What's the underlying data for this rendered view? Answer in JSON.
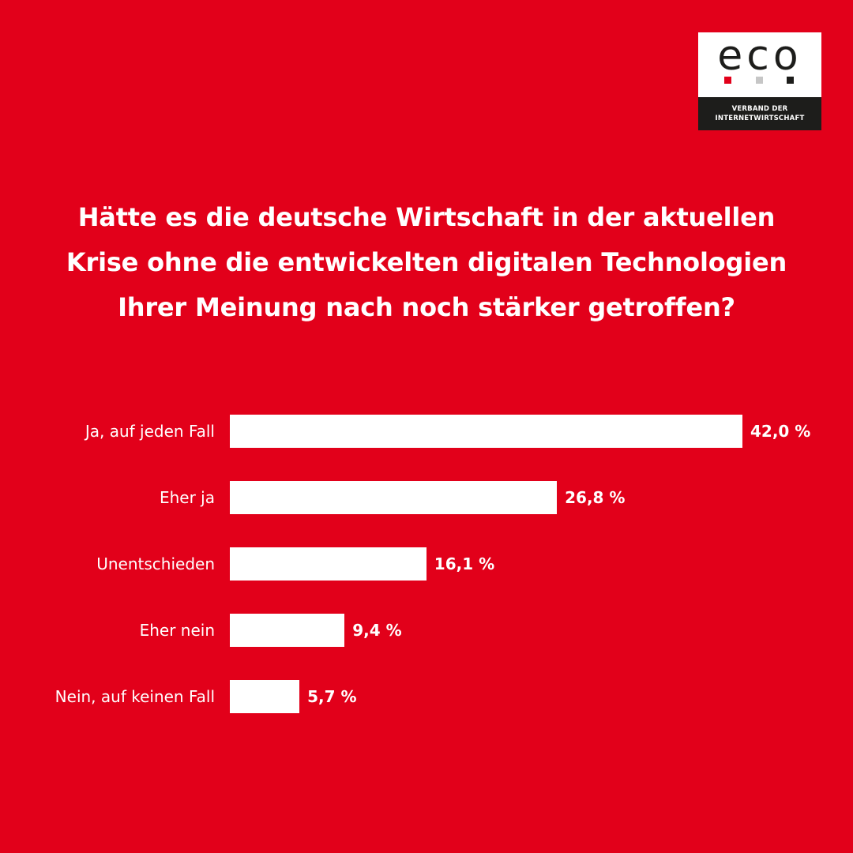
{
  "logo": {
    "word": "eco",
    "tagline_line1": "VERBAND DER",
    "tagline_line2": "INTERNETWIRTSCHAFT",
    "dots": [
      "#e2001a",
      "#c6c6c6",
      "#1d1d1b"
    ]
  },
  "colors": {
    "background": "#e2001a",
    "bar": "#ffffff",
    "text": "#ffffff"
  },
  "chart_data": {
    "type": "bar",
    "orientation": "horizontal",
    "title": "Hätte es die deutsche Wirtschaft in der aktuellen Krise ohne die entwickelten digitalen Technologien Ihrer Meinung nach noch stärker getroffen?",
    "title_lines": [
      "Hätte es die deutsche Wirtschaft in der aktuellen",
      "Krise ohne die entwickelten digitalen Technologien",
      "Ihrer Meinung nach noch stärker getroffen?"
    ],
    "categories": [
      "Ja, auf jeden Fall",
      "Eher ja",
      "Unentschieden",
      "Eher nein",
      "Nein, auf keinen Fall"
    ],
    "values": [
      42.0,
      26.8,
      16.1,
      9.4,
      5.7
    ],
    "value_labels": [
      "42,0 %",
      "26,8 %",
      "16,1 %",
      "9,4 %",
      "5,7 %"
    ],
    "unit": "%",
    "xlabel": "",
    "ylabel": "",
    "xlim": [
      0,
      42.0
    ],
    "grid": false,
    "legend": "none"
  }
}
